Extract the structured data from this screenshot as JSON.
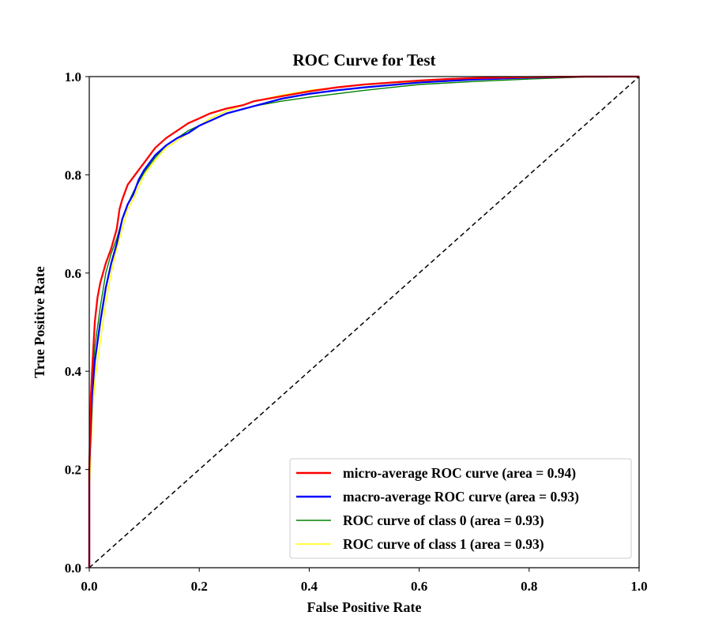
{
  "chart_data": {
    "type": "line",
    "title": "ROC Curve for Test",
    "xlabel": "False Positive Rate",
    "ylabel": "True Positive Rate",
    "xlim": [
      0.0,
      1.0
    ],
    "ylim": [
      0.0,
      1.0
    ],
    "xticks": [
      "0.0",
      "0.2",
      "0.4",
      "0.6",
      "0.8",
      "1.0"
    ],
    "yticks": [
      "0.0",
      "0.2",
      "0.4",
      "0.6",
      "0.8",
      "1.0"
    ],
    "grid": false,
    "legend_position": "lower-right",
    "series": [
      {
        "name": "micro-average ROC curve (area = 0.94)",
        "color": "#ff0000",
        "style": "solid-thick",
        "x": [
          0.0,
          0.0,
          0.003,
          0.006,
          0.01,
          0.015,
          0.02,
          0.03,
          0.04,
          0.05,
          0.055,
          0.06,
          0.07,
          0.08,
          0.09,
          0.1,
          0.12,
          0.14,
          0.16,
          0.18,
          0.2,
          0.22,
          0.25,
          0.28,
          0.3,
          0.35,
          0.4,
          0.45,
          0.5,
          0.55,
          0.6,
          0.65,
          0.7,
          0.8,
          0.9,
          1.0
        ],
        "y": [
          0.0,
          0.2,
          0.35,
          0.42,
          0.5,
          0.55,
          0.58,
          0.62,
          0.65,
          0.69,
          0.73,
          0.75,
          0.78,
          0.795,
          0.81,
          0.825,
          0.855,
          0.875,
          0.89,
          0.905,
          0.915,
          0.925,
          0.935,
          0.942,
          0.95,
          0.96,
          0.97,
          0.978,
          0.984,
          0.988,
          0.992,
          0.995,
          0.997,
          0.999,
          1.0,
          1.0
        ]
      },
      {
        "name": "macro-average ROC curve (area = 0.93)",
        "color": "#0000ff",
        "style": "solid-thick",
        "x": [
          0.0,
          0.0,
          0.005,
          0.01,
          0.02,
          0.03,
          0.04,
          0.05,
          0.06,
          0.07,
          0.08,
          0.09,
          0.1,
          0.12,
          0.14,
          0.16,
          0.18,
          0.2,
          0.22,
          0.25,
          0.3,
          0.35,
          0.4,
          0.45,
          0.5,
          0.55,
          0.6,
          0.7,
          0.8,
          0.9,
          1.0
        ],
        "y": [
          0.0,
          0.2,
          0.35,
          0.42,
          0.5,
          0.57,
          0.62,
          0.66,
          0.71,
          0.74,
          0.76,
          0.79,
          0.81,
          0.84,
          0.86,
          0.875,
          0.885,
          0.9,
          0.91,
          0.925,
          0.94,
          0.955,
          0.965,
          0.972,
          0.978,
          0.983,
          0.988,
          0.994,
          0.998,
          1.0,
          1.0
        ]
      },
      {
        "name": "ROC curve of class 0 (area = 0.93)",
        "color": "#008000",
        "style": "solid",
        "x": [
          0.0,
          0.0,
          0.005,
          0.01,
          0.02,
          0.03,
          0.04,
          0.05,
          0.06,
          0.07,
          0.08,
          0.09,
          0.1,
          0.12,
          0.14,
          0.16,
          0.18,
          0.2,
          0.22,
          0.25,
          0.3,
          0.35,
          0.4,
          0.45,
          0.5,
          0.55,
          0.6,
          0.7,
          0.8,
          0.9,
          1.0
        ],
        "y": [
          0.0,
          0.22,
          0.38,
          0.45,
          0.53,
          0.6,
          0.64,
          0.67,
          0.71,
          0.74,
          0.765,
          0.785,
          0.805,
          0.835,
          0.86,
          0.875,
          0.89,
          0.9,
          0.91,
          0.925,
          0.94,
          0.95,
          0.958,
          0.965,
          0.972,
          0.978,
          0.984,
          0.99,
          0.995,
          0.999,
          1.0
        ]
      },
      {
        "name": "ROC curve of class 1 (area = 0.93)",
        "color": "#ffff00",
        "style": "solid",
        "x": [
          0.0,
          0.0,
          0.005,
          0.01,
          0.02,
          0.03,
          0.04,
          0.05,
          0.06,
          0.07,
          0.08,
          0.09,
          0.1,
          0.12,
          0.14,
          0.16,
          0.18,
          0.2,
          0.22,
          0.25,
          0.3,
          0.35,
          0.4,
          0.45,
          0.5,
          0.55,
          0.6,
          0.7,
          0.8,
          0.9,
          1.0
        ],
        "y": [
          0.0,
          0.15,
          0.3,
          0.38,
          0.46,
          0.54,
          0.6,
          0.65,
          0.69,
          0.73,
          0.75,
          0.775,
          0.8,
          0.83,
          0.855,
          0.87,
          0.885,
          0.9,
          0.915,
          0.93,
          0.95,
          0.962,
          0.972,
          0.978,
          0.983,
          0.987,
          0.99,
          0.995,
          0.998,
          1.0,
          1.0
        ]
      },
      {
        "name": "",
        "color": "#000000",
        "style": "dashed",
        "x": [
          0.0,
          1.0
        ],
        "y": [
          0.0,
          1.0
        ]
      }
    ]
  }
}
